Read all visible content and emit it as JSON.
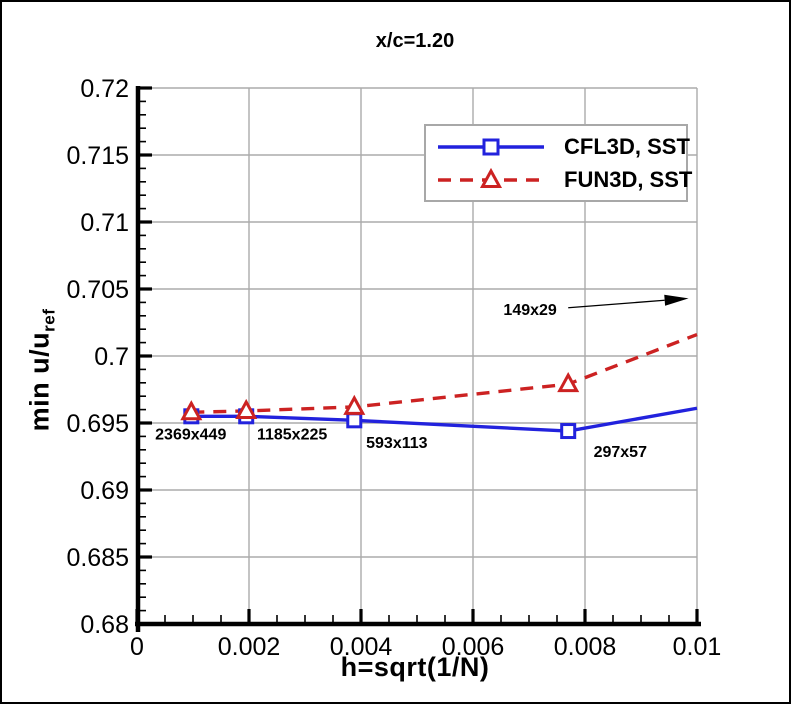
{
  "chart_data": {
    "type": "line",
    "title": "x/c=1.20",
    "xlabel": "h=sqrt(1/N)",
    "ylabel_main": "min u/u",
    "ylabel_sub": "ref",
    "xlim": [
      0,
      0.01
    ],
    "ylim": [
      0.68,
      0.72
    ],
    "x_ticks": [
      0,
      0.002,
      0.004,
      0.006,
      0.008,
      0.01
    ],
    "x_tick_labels": [
      "0",
      "0.002",
      "0.004",
      "0.006",
      "0.008",
      "0.01"
    ],
    "x_minor_step": 0.0005,
    "y_ticks": [
      0.68,
      0.685,
      0.69,
      0.695,
      0.7,
      0.705,
      0.71,
      0.715,
      0.72
    ],
    "y_tick_labels": [
      "0.68",
      "0.685",
      "0.69",
      "0.695",
      "0.7",
      "0.705",
      "0.71",
      "0.715",
      "0.72"
    ],
    "y_minor_step": 0.001,
    "grid": true,
    "legend_position": "upper-right-inside",
    "colors": {
      "grid": "#ababab",
      "axis": "#000000",
      "legend_border": "#a8a8a8",
      "annotation": "#000000",
      "cfl3d_blue": "#2222dd",
      "fun3d_red": "#cc2222"
    },
    "series": [
      {
        "name": "CFL3D, SST",
        "color": "#2222dd",
        "line": "solid",
        "marker": "square",
        "points": [
          [
            0.00097,
            0.6955
          ],
          [
            0.00195,
            0.6955
          ],
          [
            0.00388,
            0.6952
          ],
          [
            0.0077,
            0.6944
          ]
        ],
        "edge_exit": [
          0.01,
          0.6961
        ]
      },
      {
        "name": "FUN3D, SST",
        "color": "#cc2222",
        "line": "dashed",
        "marker": "triangle",
        "points": [
          [
            0.00097,
            0.6958
          ],
          [
            0.00195,
            0.6959
          ],
          [
            0.00388,
            0.6962
          ],
          [
            0.0077,
            0.6979
          ]
        ],
        "edge_exit": [
          0.01,
          0.7016
        ]
      }
    ],
    "annotations": [
      {
        "text": "2369x449",
        "x": 0.00096,
        "y": 0.6942
      },
      {
        "text": "1185x225",
        "x": 0.00277,
        "y": 0.6942
      },
      {
        "text": "593x113",
        "x": 0.00464,
        "y": 0.6936
      },
      {
        "text": "297x57",
        "x": 0.00863,
        "y": 0.6929
      },
      {
        "text": "149x29",
        "x": 0.00702,
        "y": 0.7035
      }
    ],
    "arrow": {
      "x1": 0.0077,
      "y1": 0.7036,
      "x2": 0.00985,
      "y2": 0.7043
    }
  }
}
